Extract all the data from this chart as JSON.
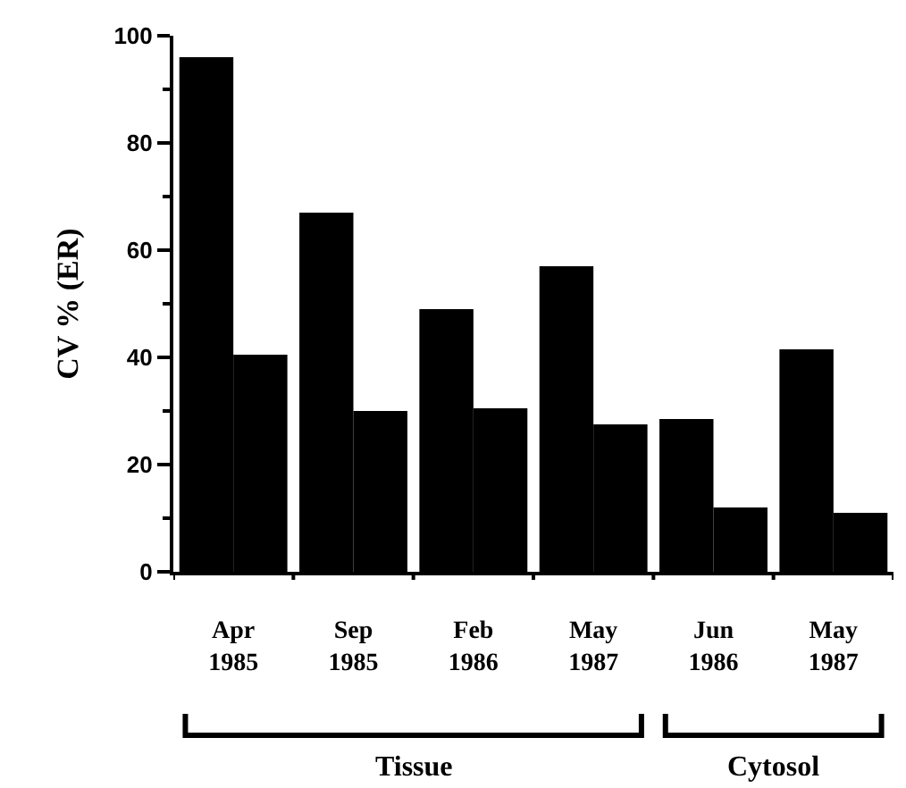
{
  "chart_data": {
    "type": "bar",
    "ylabel": "CV % (ER)",
    "categories": [
      "Apr\n1985",
      "Sep\n1985",
      "Feb\n1986",
      "May\n1987",
      "Jun\n1986",
      "May\n1987"
    ],
    "series": [
      {
        "color": "#000000",
        "values": [
          96,
          67,
          49,
          57,
          28.5,
          41.5
        ]
      },
      {
        "color": "#000000",
        "values": [
          40.5,
          30,
          30.5,
          27.5,
          12,
          11
        ]
      }
    ],
    "ylim": [
      0,
      100
    ],
    "yticks": [
      0,
      20,
      40,
      60,
      80,
      100
    ],
    "annotations": [
      "Tissue",
      "Cytosol"
    ]
  }
}
